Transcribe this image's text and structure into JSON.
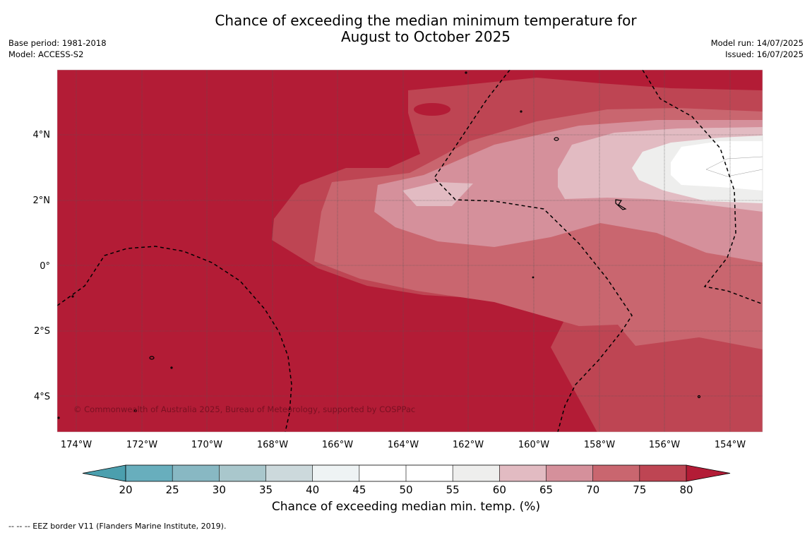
{
  "title_line1": "Chance of exceeding the median minimum temperature for",
  "title_line2": "August to October 2025",
  "meta_left": {
    "base_period": "Base period: 1981-2018",
    "model": "Model: ACCESS-S2"
  },
  "meta_right": {
    "model_run": "Model run: 14/07/2025",
    "issued": "Issued: 16/07/2025"
  },
  "map": {
    "lon_ticks": [
      "174°W",
      "172°W",
      "170°W",
      "168°W",
      "166°W",
      "164°W",
      "162°W",
      "160°W",
      "158°W",
      "156°W",
      "154°W"
    ],
    "lat_ticks": [
      "4°N",
      "2°N",
      "0°",
      "2°S",
      "4°S"
    ],
    "copyright": "© Commonwealth of Australia 2025, Bureau of Meteorology, supported by COSPPac"
  },
  "colorbar": {
    "ticks": [
      "20",
      "25",
      "30",
      "35",
      "40",
      "45",
      "50",
      "55",
      "60",
      "65",
      "70",
      "75",
      "80"
    ],
    "colors": [
      "#68aebd",
      "#88b8c3",
      "#a9c7cc",
      "#ccd9dc",
      "#eef3f4",
      "#ffffff",
      "#ffffff",
      "#eeeeed",
      "#e2bbc2",
      "#d5909b",
      "#c9666f",
      "#be4553"
    ],
    "under_color": "#4b9fae",
    "over_color": "#b31c36",
    "label": "Chance of exceeding median min. temp. (%)"
  },
  "footnote": "--  --  -- EEZ border V11 (Flanders Marine Institute, 2019)."
}
